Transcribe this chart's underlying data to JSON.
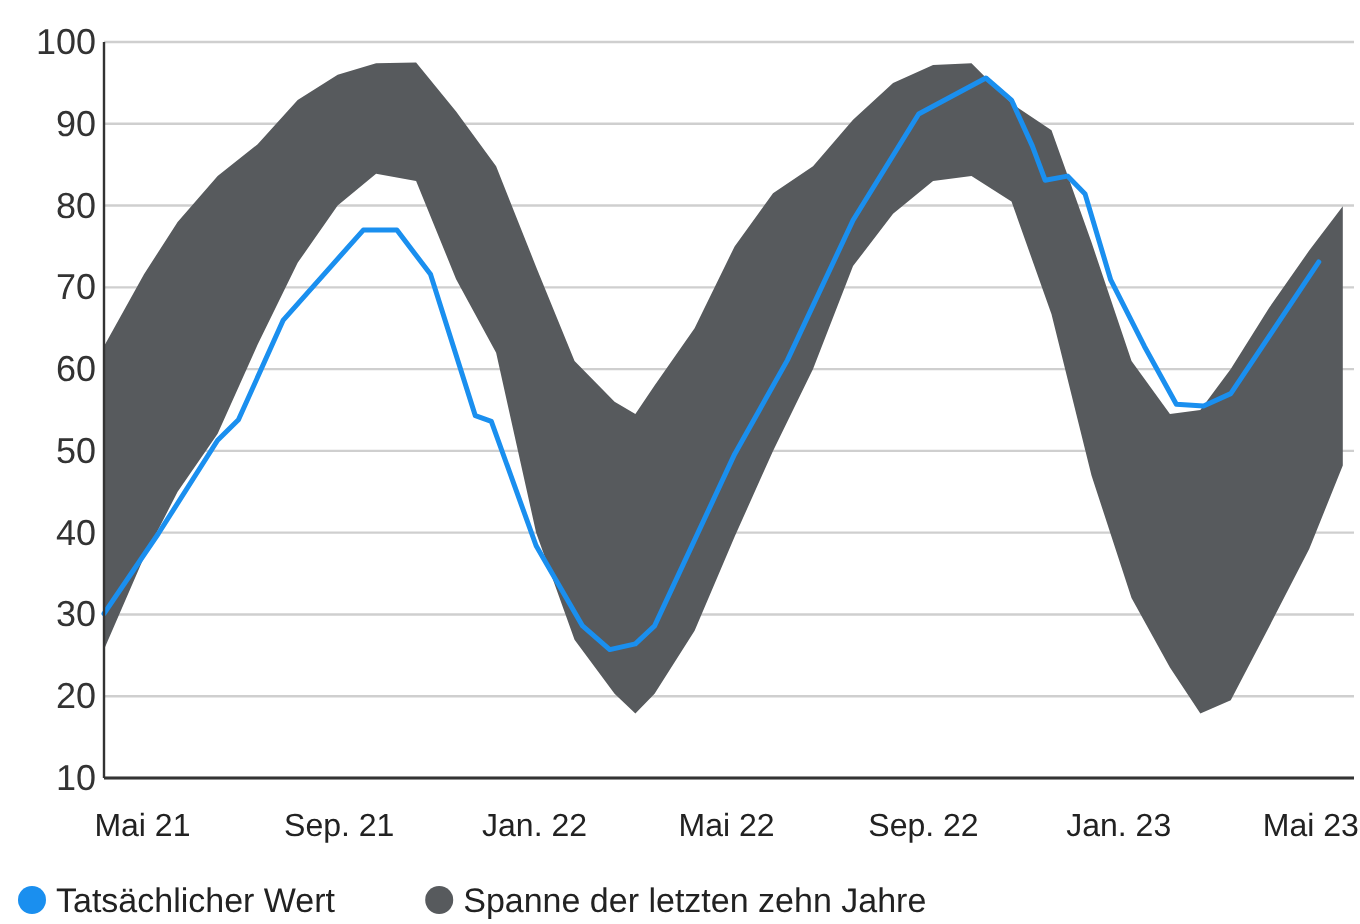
{
  "chart_data": {
    "type": "line",
    "x": [
      "2021-04-07",
      "2021-05-11",
      "2021-06-17",
      "2021-06-30",
      "2021-07-28",
      "2021-08-27",
      "2021-09-16",
      "2021-10-07",
      "2021-10-28",
      "2021-11-25",
      "2021-12-05",
      "2022-01-02",
      "2022-01-31",
      "2022-02-17",
      "2022-03-05",
      "2022-03-17",
      "2022-05-06",
      "2022-06-08",
      "2022-07-19",
      "2022-08-29",
      "2022-10-10",
      "2022-10-26",
      "2022-11-08",
      "2022-11-16",
      "2022-11-30",
      "2022-12-11",
      "2022-12-27",
      "2023-01-17",
      "2023-02-06",
      "2023-02-23",
      "2023-03-12",
      "2023-05-06"
    ],
    "series": [
      {
        "name": "Spanne der letzten zehn Jahre",
        "type": "area",
        "color": "#575a5d",
        "x": [
          "2021-04-07",
          "2021-05-02",
          "2021-05-23",
          "2021-06-17",
          "2021-07-12",
          "2021-08-06",
          "2021-08-31",
          "2021-09-24",
          "2021-10-19",
          "2021-11-13",
          "2021-12-08",
          "2022-01-02",
          "2022-01-26",
          "2022-02-20",
          "2022-03-05",
          "2022-03-17",
          "2022-04-11",
          "2022-05-06",
          "2022-05-30",
          "2022-06-24",
          "2022-07-19",
          "2022-08-13",
          "2022-09-07",
          "2022-10-01",
          "2022-10-26",
          "2022-11-20",
          "2022-12-15",
          "2023-01-09",
          "2023-02-02",
          "2023-02-21",
          "2023-03-12",
          "2023-04-05",
          "2023-04-30",
          "2023-05-21"
        ],
        "lower": [
          25.7,
          37,
          45,
          52.1,
          63,
          73,
          80,
          83.9,
          83,
          71,
          62,
          40,
          26.9,
          20.3,
          17.9,
          20.3,
          28,
          39.5,
          50,
          60,
          72.6,
          79,
          83,
          83.6,
          80.5,
          66.7,
          47,
          32,
          23.5,
          17.9,
          19.5,
          28.5,
          38,
          48.2
        ],
        "upper": [
          62.8,
          71.6,
          78,
          83.6,
          87.5,
          92.9,
          96,
          97.4,
          97.5,
          91.5,
          84.8,
          72.5,
          61,
          56,
          54.5,
          58,
          65,
          75,
          81.5,
          84.8,
          90.5,
          95,
          97.2,
          97.4,
          92.5,
          89.2,
          75.5,
          61,
          54.5,
          55,
          60,
          67.5,
          74.5,
          79.9
        ],
        "values": [
          null,
          null,
          null,
          null,
          null,
          null,
          null,
          null,
          null,
          null,
          null,
          null,
          null,
          null,
          null,
          null,
          null,
          null,
          null,
          null,
          null,
          null,
          null,
          null,
          null,
          null,
          null,
          null,
          null,
          null,
          null,
          null,
          null,
          null
        ]
      },
      {
        "name": "Tatsächlicher Wert",
        "color": "#1a8fef",
        "values": [
          30.1,
          39.9,
          51.3,
          53.8,
          66,
          72.6,
          77,
          77,
          71.6,
          54.3,
          53.6,
          38.4,
          28.6,
          25.7,
          26.4,
          28.6,
          49.6,
          61.1,
          78.2,
          91.2,
          95.6,
          92.9,
          87.3,
          83.1,
          83.6,
          81.4,
          70.9,
          62.8,
          55.7,
          55.5,
          57,
          73.1
        ]
      }
    ],
    "xlim": [
      "2021-04-07",
      "2023-05-28"
    ],
    "xticks": [
      {
        "value": "2021-05-01",
        "label": "Mai 21"
      },
      {
        "value": "2021-09-01",
        "label": "Sep. 21"
      },
      {
        "value": "2022-01-01",
        "label": "Jan. 22"
      },
      {
        "value": "2022-05-01",
        "label": "Mai 22"
      },
      {
        "value": "2022-09-01",
        "label": "Sep. 22"
      },
      {
        "value": "2023-01-01",
        "label": "Jan. 23"
      },
      {
        "value": "2023-05-01",
        "label": "Mai 23"
      }
    ],
    "ylim": [
      10,
      100
    ],
    "yticks": [
      10,
      20,
      30,
      40,
      50,
      60,
      70,
      80,
      90,
      100
    ],
    "grid": "y",
    "legend": "bottom",
    "marker": "none",
    "line_style": "solid"
  }
}
